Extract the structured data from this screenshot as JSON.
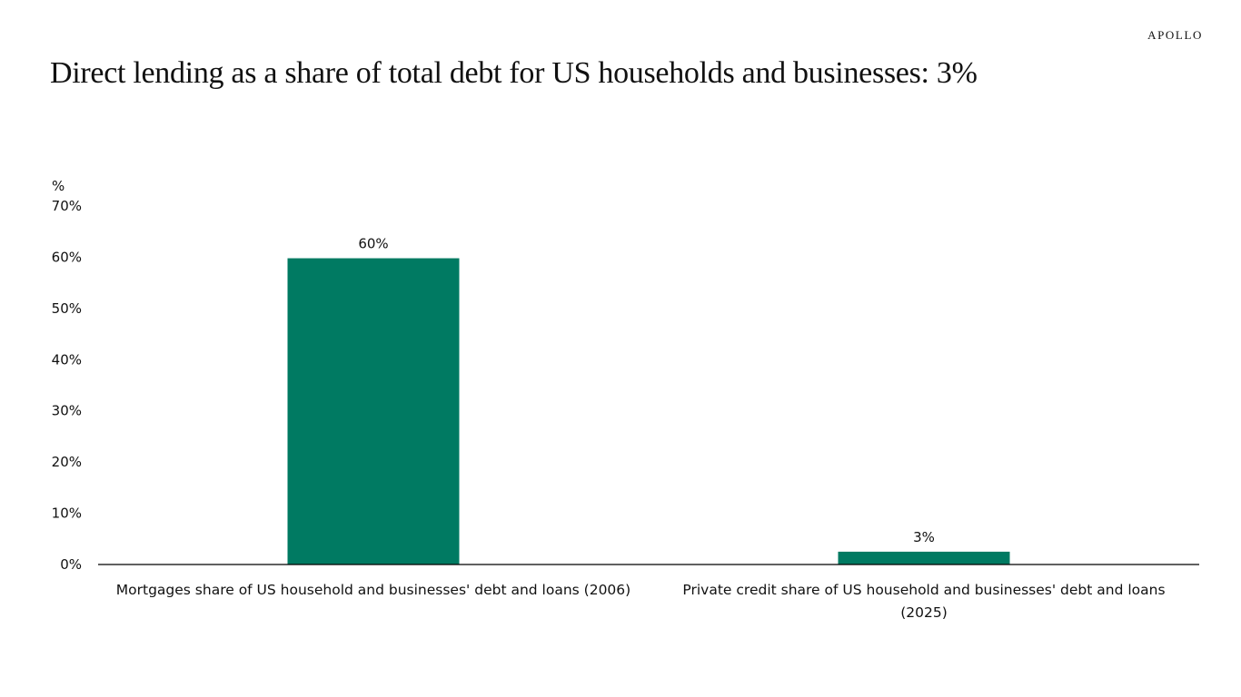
{
  "brand": "APOLLO",
  "title": "Direct lending as a share of total debt for US households and businesses: 3%",
  "colors": {
    "bar": "#007A62",
    "axis": "#000000"
  },
  "chart_data": {
    "type": "bar",
    "title": "Direct lending as a share of total debt for US households and businesses: 3%",
    "ylabel": "%",
    "xlabel": "",
    "ylim": [
      0,
      70
    ],
    "yticks": [
      "0%",
      "10%",
      "20%",
      "30%",
      "40%",
      "50%",
      "60%",
      "70%"
    ],
    "grid": false,
    "categories": [
      [
        "Mortgages share of US household and businesses' debt and loans (2006)"
      ],
      [
        "Private credit share of US household and businesses' debt and loans",
        "(2025)"
      ]
    ],
    "values": [
      59.8,
      2.5
    ],
    "data_labels": [
      "60%",
      "3%"
    ]
  }
}
